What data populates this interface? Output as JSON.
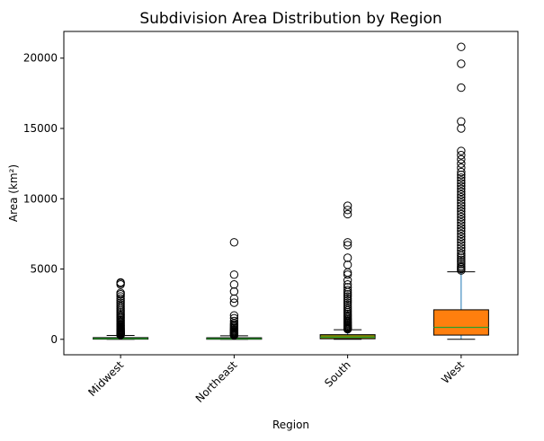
{
  "chart_data": {
    "type": "box",
    "title": "Subdivision Area Distribution by Region",
    "xlabel": "Region",
    "ylabel": "Area (km²)",
    "categories": [
      "Midwest",
      "Northeast",
      "South",
      "West"
    ],
    "ylim": [
      -1100,
      21900
    ],
    "yticks": [
      0,
      5000,
      10000,
      15000,
      20000
    ],
    "ytick_labels": [
      "0",
      "5000",
      "10000",
      "15000",
      "20000"
    ],
    "grid": false,
    "boxes": [
      {
        "name": "Midwest",
        "q1": 10,
        "median": 50,
        "q3": 120,
        "whisker_low": 0,
        "whisker_high": 270,
        "color": "#2ca02c",
        "outliers": [
          300,
          330,
          360,
          390,
          420,
          450,
          480,
          520,
          560,
          600,
          640,
          690,
          740,
          790,
          850,
          910,
          980,
          1050,
          1120,
          1200,
          1280,
          1360,
          1450,
          1540,
          1640,
          1740,
          1850,
          1960,
          2080,
          2200,
          2330,
          2460,
          2600,
          2750,
          2900,
          3050,
          3200,
          3300,
          3900,
          4000,
          4050
        ]
      },
      {
        "name": "Northeast",
        "q1": 5,
        "median": 40,
        "q3": 110,
        "whisker_low": 0,
        "whisker_high": 250,
        "color": "#2ca02c",
        "outliers": [
          280,
          310,
          350,
          390,
          430,
          480,
          530,
          590,
          650,
          720,
          800,
          880,
          960,
          1050,
          1150,
          1300,
          1500,
          1700,
          2600,
          2900,
          3400,
          3900,
          4600,
          6900
        ]
      },
      {
        "name": "South",
        "q1": 40,
        "median": 150,
        "q3": 330,
        "whisker_low": 0,
        "whisker_high": 680,
        "color": "#808000",
        "outliers": [
          720,
          760,
          800,
          850,
          900,
          960,
          1020,
          1090,
          1160,
          1240,
          1320,
          1410,
          1500,
          1600,
          1700,
          1810,
          1920,
          2040,
          2170,
          2300,
          2450,
          2600,
          2750,
          2900,
          3050,
          3200,
          3350,
          3500,
          3700,
          3900,
          4200,
          4600,
          4750,
          5300,
          5800,
          6700,
          6900,
          8900,
          9200,
          9500
        ]
      },
      {
        "name": "West",
        "q1": 300,
        "median": 850,
        "q3": 2100,
        "whisker_low": 0,
        "whisker_high": 4800,
        "color": "#ff7f0e",
        "outliers": [
          4900,
          5000,
          5100,
          5200,
          5350,
          5500,
          5650,
          5800,
          5950,
          6100,
          6300,
          6500,
          6700,
          6900,
          7100,
          7300,
          7500,
          7700,
          7900,
          8100,
          8300,
          8500,
          8700,
          8900,
          9100,
          9300,
          9500,
          9700,
          9900,
          10100,
          10300,
          10500,
          10700,
          10900,
          11100,
          11300,
          11500,
          11700,
          11900,
          12200,
          12500,
          12800,
          13100,
          13400,
          15000,
          15500,
          17900,
          19600,
          20800
        ]
      }
    ]
  }
}
